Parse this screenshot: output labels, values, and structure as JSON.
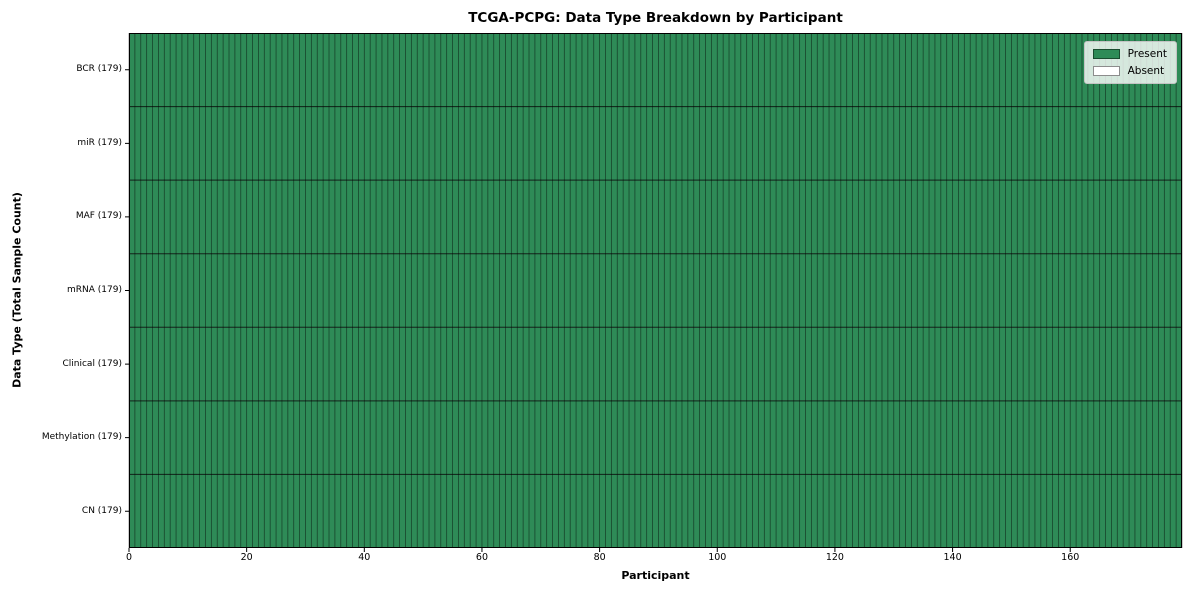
{
  "chart_data": {
    "type": "heatmap",
    "title": "TCGA-PCPG: Data Type Breakdown by Participant",
    "xlabel": "Participant",
    "ylabel": "Data Type (Total Sample Count)",
    "participants": 179,
    "xlim": [
      0,
      179
    ],
    "x_ticks": [
      0,
      20,
      40,
      60,
      80,
      100,
      120,
      140,
      160
    ],
    "rows": [
      {
        "label": "BCR (179)",
        "data_type": "BCR",
        "total_samples": 179,
        "present": 179,
        "absent": 0
      },
      {
        "label": "miR (179)",
        "data_type": "miR",
        "total_samples": 179,
        "present": 179,
        "absent": 0
      },
      {
        "label": "MAF (179)",
        "data_type": "MAF",
        "total_samples": 179,
        "present": 179,
        "absent": 0
      },
      {
        "label": "mRNA (179)",
        "data_type": "mRNA",
        "total_samples": 179,
        "present": 179,
        "absent": 0
      },
      {
        "label": "Clinical (179)",
        "data_type": "Clinical",
        "total_samples": 179,
        "present": 179,
        "absent": 0
      },
      {
        "label": "Methylation (179)",
        "data_type": "Methylation",
        "total_samples": 179,
        "present": 179,
        "absent": 0
      },
      {
        "label": "CN (179)",
        "data_type": "CN",
        "total_samples": 179,
        "present": 179,
        "absent": 0
      }
    ],
    "legend": [
      {
        "label": "Present",
        "color": "#2e8b57"
      },
      {
        "label": "Absent",
        "color": "#ffffff"
      }
    ],
    "legend_position": "upper right",
    "colors": {
      "present": "#2e8b57",
      "absent": "#ffffff",
      "cell_edge": "#000000",
      "row_divider": "#000000",
      "spine": "#000000"
    },
    "grid": true
  }
}
